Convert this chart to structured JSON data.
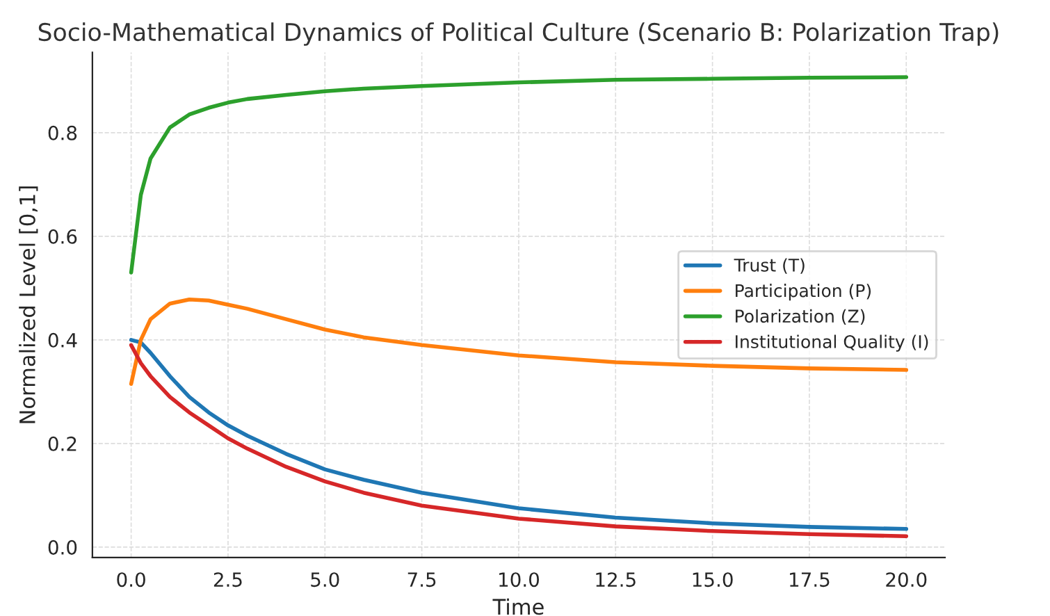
{
  "chart_data": {
    "type": "line",
    "title": "Socio-Mathematical Dynamics of Political Culture (Scenario B: Polarization Trap)",
    "xlabel": "Time",
    "ylabel": "Normalized Level [0,1]",
    "x": [
      0,
      0.25,
      0.5,
      1,
      1.5,
      2,
      2.5,
      3,
      4,
      5,
      6,
      7.5,
      10,
      12.5,
      15,
      17.5,
      20
    ],
    "series": [
      {
        "name": "Trust (T)",
        "color": "#1f77b4",
        "values": [
          0.4,
          0.395,
          0.375,
          0.33,
          0.29,
          0.26,
          0.235,
          0.215,
          0.18,
          0.15,
          0.13,
          0.105,
          0.075,
          0.057,
          0.046,
          0.039,
          0.035
        ]
      },
      {
        "name": "Participation (P)",
        "color": "#ff7f0e",
        "values": [
          0.315,
          0.4,
          0.44,
          0.47,
          0.478,
          0.476,
          0.468,
          0.46,
          0.44,
          0.42,
          0.405,
          0.39,
          0.37,
          0.357,
          0.35,
          0.345,
          0.342
        ]
      },
      {
        "name": "Polarization (Z)",
        "color": "#2ca02c",
        "values": [
          0.53,
          0.68,
          0.75,
          0.81,
          0.835,
          0.848,
          0.858,
          0.865,
          0.873,
          0.88,
          0.885,
          0.89,
          0.897,
          0.902,
          0.904,
          0.906,
          0.907
        ]
      },
      {
        "name": "Institutional Quality (I)",
        "color": "#d62728",
        "values": [
          0.39,
          0.355,
          0.33,
          0.29,
          0.26,
          0.235,
          0.21,
          0.19,
          0.155,
          0.127,
          0.105,
          0.08,
          0.055,
          0.04,
          0.031,
          0.025,
          0.021
        ]
      }
    ],
    "xlim": [
      -1,
      21
    ],
    "ylim": [
      -0.02,
      0.955
    ],
    "xticks": [
      {
        "value": 0,
        "label": "0.0"
      },
      {
        "value": 2.5,
        "label": "2.5"
      },
      {
        "value": 5,
        "label": "5.0"
      },
      {
        "value": 7.5,
        "label": "7.5"
      },
      {
        "value": 10,
        "label": "10.0"
      },
      {
        "value": 12.5,
        "label": "12.5"
      },
      {
        "value": 15,
        "label": "15.0"
      },
      {
        "value": 17.5,
        "label": "17.5"
      },
      {
        "value": 20,
        "label": "20.0"
      }
    ],
    "yticks": [
      {
        "value": 0,
        "label": "0.0"
      },
      {
        "value": 0.2,
        "label": "0.2"
      },
      {
        "value": 0.4,
        "label": "0.4"
      },
      {
        "value": 0.6,
        "label": "0.6"
      },
      {
        "value": 0.8,
        "label": "0.8"
      }
    ],
    "grid": true,
    "legend": "center right",
    "line_style": "solid",
    "marker": "none"
  }
}
